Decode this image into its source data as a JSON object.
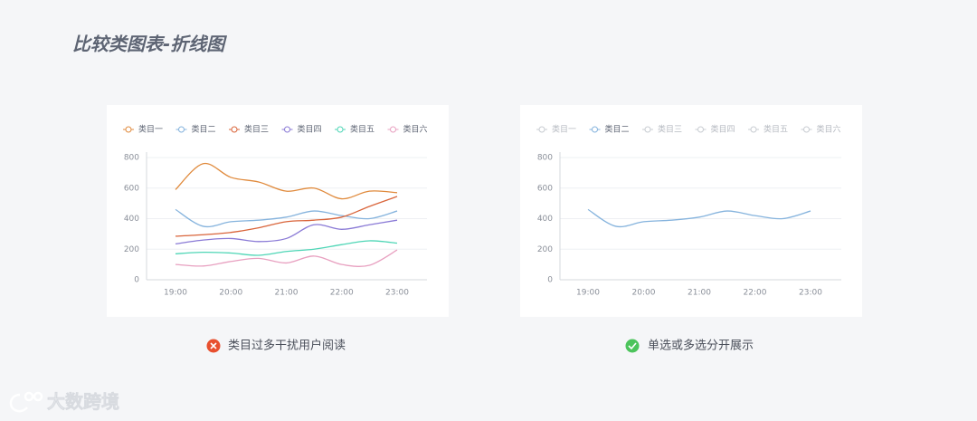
{
  "page_title": "比较类图表-折线图",
  "captions": [
    "类目过多干扰用户阅读",
    "单选或多选分开展示"
  ],
  "watermark": "大数跨境",
  "chart_data": [
    {
      "type": "line",
      "categories": [
        "19:00",
        null,
        "20:00",
        null,
        "21:00",
        null,
        "22:00",
        null,
        "23:00"
      ],
      "ylim": [
        0,
        800
      ],
      "yticks": [
        0,
        200,
        400,
        600,
        800
      ],
      "grid": true,
      "legend": "top",
      "series": [
        {
          "name": "类目一",
          "color": "#e08a3c",
          "values": [
            590,
            760,
            670,
            640,
            580,
            600,
            530,
            580,
            570
          ]
        },
        {
          "name": "类目二",
          "color": "#85b3dd",
          "values": [
            460,
            350,
            380,
            390,
            410,
            450,
            420,
            400,
            450
          ]
        },
        {
          "name": "类目三",
          "color": "#d9643a",
          "values": [
            285,
            295,
            310,
            340,
            380,
            390,
            410,
            480,
            545
          ]
        },
        {
          "name": "类目四",
          "color": "#8a7ad6",
          "values": [
            235,
            260,
            270,
            250,
            270,
            360,
            330,
            360,
            390
          ]
        },
        {
          "name": "类目五",
          "color": "#4fd6b6",
          "values": [
            170,
            180,
            175,
            160,
            185,
            200,
            230,
            255,
            240
          ]
        },
        {
          "name": "类目六",
          "color": "#e8a0c0",
          "values": [
            100,
            90,
            120,
            140,
            110,
            155,
            100,
            95,
            195
          ]
        }
      ]
    },
    {
      "type": "line",
      "categories": [
        "19:00",
        null,
        "20:00",
        null,
        "21:00",
        null,
        "22:00",
        null,
        "23:00"
      ],
      "ylim": [
        0,
        800
      ],
      "yticks": [
        0,
        200,
        400,
        600,
        800
      ],
      "grid": true,
      "legend": "top",
      "legend_items": [
        "类目一",
        "类目二",
        "类目三",
        "类目四",
        "类目五",
        "类目六"
      ],
      "legend_selected": 1,
      "series": [
        {
          "color": "#85b3dd",
          "values": [
            460,
            350,
            380,
            390,
            410,
            450,
            420,
            400,
            450
          ]
        }
      ]
    }
  ]
}
